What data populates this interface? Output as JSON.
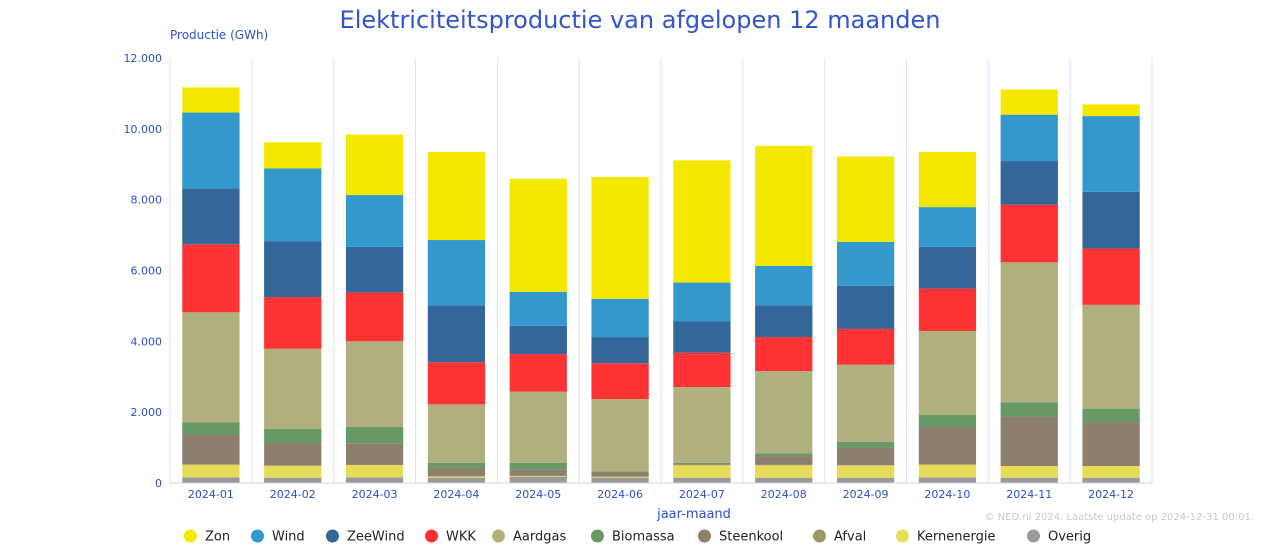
{
  "chart_data": {
    "type": "bar",
    "stacked": true,
    "title": "Elektriciteitsproductie van afgelopen 12 maanden",
    "ylabel": "Productie (GWh)",
    "xlabel": "jaar-maand",
    "ylim": [
      0,
      12000
    ],
    "yticks": [
      0,
      2000,
      4000,
      6000,
      8000,
      10000,
      12000
    ],
    "ytick_labels": [
      "0",
      "2.000",
      "4.000",
      "6.000",
      "8.000",
      "10.000",
      "12.000"
    ],
    "grid": "vertical",
    "legend_position": "bottom",
    "categories": [
      "2024-01",
      "2024-02",
      "2024-03",
      "2024-04",
      "2024-05",
      "2024-06",
      "2024-07",
      "2024-08",
      "2024-09",
      "2024-10",
      "2024-11",
      "2024-12"
    ],
    "series": [
      {
        "name": "Overig",
        "color": "#999999",
        "values": [
          160,
          150,
          160,
          150,
          170,
          150,
          150,
          150,
          150,
          160,
          150,
          150
        ]
      },
      {
        "name": "Kernenergie",
        "color": "#e6dc5a",
        "values": [
          360,
          340,
          350,
          30,
          20,
          20,
          350,
          350,
          350,
          360,
          330,
          330
        ]
      },
      {
        "name": "Afval",
        "color": "#999966",
        "values": [
          0,
          0,
          0,
          20,
          20,
          20,
          20,
          20,
          0,
          0,
          0,
          0
        ]
      },
      {
        "name": "Steenkool",
        "color": "#8c7f6e",
        "values": [
          850,
          640,
          600,
          240,
          180,
          120,
          30,
          240,
          500,
          1060,
          1400,
          1240
        ]
      },
      {
        "name": "Biomassa",
        "color": "#669966",
        "values": [
          340,
          400,
          480,
          130,
          180,
          20,
          20,
          80,
          160,
          340,
          400,
          380
        ]
      },
      {
        "name": "Aardgas",
        "color": "#b0af7e",
        "values": [
          3110,
          2260,
          2410,
          1650,
          2010,
          2040,
          2140,
          2320,
          2180,
          2370,
          3950,
          2930
        ]
      },
      {
        "name": "WKK",
        "color": "#ff3333",
        "values": [
          1920,
          1460,
          1380,
          1190,
          1060,
          1010,
          970,
          960,
          1010,
          1200,
          1630,
          1590
        ]
      },
      {
        "name": "ZeeWind",
        "color": "#336699",
        "values": [
          1580,
          1580,
          1290,
          1600,
          800,
          740,
          880,
          900,
          1220,
          1180,
          1230,
          1600
        ]
      },
      {
        "name": "Wind",
        "color": "#3399cc",
        "values": [
          2140,
          2050,
          1460,
          1850,
          960,
          1080,
          1100,
          1110,
          1240,
          1120,
          1310,
          2140
        ]
      },
      {
        "name": "Zon",
        "color": "#f5e800",
        "values": [
          710,
          740,
          1710,
          2490,
          3190,
          3440,
          3450,
          3390,
          2410,
          1560,
          710,
          330
        ]
      }
    ],
    "legend_order": [
      "Zon",
      "Wind",
      "ZeeWind",
      "WKK",
      "Aardgas",
      "Biomassa",
      "Steenkool",
      "Afval",
      "Kernenergie",
      "Overig"
    ],
    "credit": "© NED.nl 2024. Laatste update op 2024-12-31 00:01."
  }
}
